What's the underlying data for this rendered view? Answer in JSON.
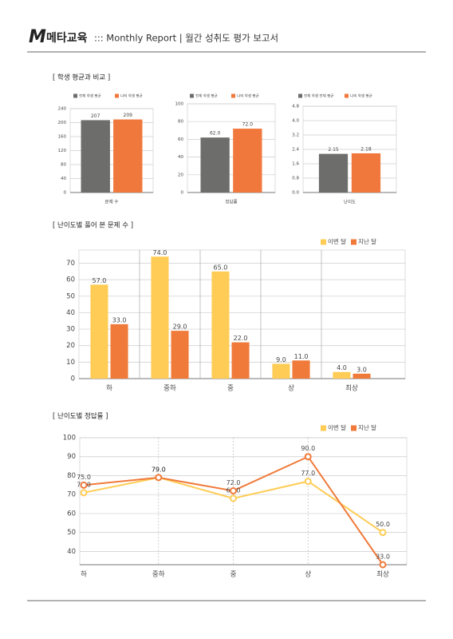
{
  "header": {
    "logo": "메타교육",
    "title": "::: Monthly Report | 월간 성취도 평가 보고서"
  },
  "sections": [
    "[ 학생 평균과 비교 ]",
    "[ 난이도별 풀어 본 문제 수 ]",
    "[ 난이도별 정답률 ]"
  ],
  "chart_data": [
    {
      "type": "bar",
      "categories": [
        "문제 수"
      ],
      "series": [
        {
          "name": "전체 학생 평균",
          "color": "#6d6d6b",
          "values": [
            207
          ]
        },
        {
          "name": "나의 학생 평균",
          "color": "#f0783c",
          "values": [
            209
          ]
        }
      ],
      "ylim": [
        0,
        240
      ],
      "yticks": [
        0,
        40,
        80,
        120,
        160,
        200,
        240
      ],
      "grid": true
    },
    {
      "type": "bar",
      "categories": [
        "정답률"
      ],
      "series": [
        {
          "name": "전체 학생 평균",
          "color": "#6d6d6b",
          "values": [
            62
          ],
          "value_labels": [
            "62.0"
          ]
        },
        {
          "name": "나의 학생 평균",
          "color": "#f0783c",
          "values": [
            72
          ],
          "value_labels": [
            "72.0"
          ]
        }
      ],
      "ylim": [
        0,
        100
      ],
      "yticks": [
        0,
        20,
        40,
        60,
        80,
        100
      ],
      "grid": true
    },
    {
      "type": "bar",
      "categories": [
        "난이도"
      ],
      "series": [
        {
          "name": "전체 학생 전체 평균",
          "color": "#6d6d6b",
          "values": [
            2.15
          ]
        },
        {
          "name": "나의 학생 평균",
          "color": "#f0783c",
          "values": [
            2.18
          ]
        }
      ],
      "ylim": [
        0,
        4.8
      ],
      "yticks": [
        {
          "value": 0,
          "label": "0.0"
        },
        {
          "value": 0.8,
          "label": "0.8"
        },
        {
          "value": 1.6,
          "label": "1.6"
        },
        {
          "value": 2.4,
          "label": "2.4"
        },
        {
          "value": 3.2,
          "label": "3.2"
        },
        {
          "value": 4,
          "label": "4.0"
        },
        {
          "value": 4.8,
          "label": "4.8"
        }
      ],
      "grid": true
    },
    {
      "type": "bar",
      "categories": [
        "하",
        "중하",
        "중",
        "상",
        "최상"
      ],
      "series": [
        {
          "name": "이번 달",
          "color": "#ffcc55",
          "values": [
            57,
            74,
            65,
            9,
            4
          ],
          "value_labels": [
            "57.0",
            "74.0",
            "65.0",
            "9.0",
            "4.0"
          ]
        },
        {
          "name": "지난 달",
          "color": "#f07a3a",
          "values": [
            33,
            29,
            22,
            11,
            3
          ],
          "value_labels": [
            "33.0",
            "29.0",
            "22.0",
            "11.0",
            "3.0"
          ]
        }
      ],
      "ylim": [
        0,
        78
      ],
      "yticks": [
        0,
        10,
        20,
        30,
        40,
        50,
        60,
        70
      ],
      "grid": true,
      "legend": "top-right"
    },
    {
      "type": "line",
      "categories": [
        "하",
        "중하",
        "중",
        "상",
        "최상"
      ],
      "series": [
        {
          "name": "이번 달",
          "color": "#ffcc55",
          "values": [
            71,
            79,
            68,
            77,
            50
          ],
          "value_labels": [
            "71.0",
            "79.0",
            "68.0",
            "77.0",
            "50.0"
          ]
        },
        {
          "name": "지난 달",
          "color": "#f07a3a",
          "values": [
            75,
            79,
            72,
            90,
            33
          ],
          "value_labels": [
            "75.0",
            "79.0",
            "72.0",
            "90.0",
            "33.0"
          ]
        }
      ],
      "ylim": [
        33,
        100
      ],
      "yticks": [
        40,
        50,
        60,
        70,
        80,
        90,
        100
      ],
      "grid": true,
      "legend": "top-right"
    }
  ]
}
